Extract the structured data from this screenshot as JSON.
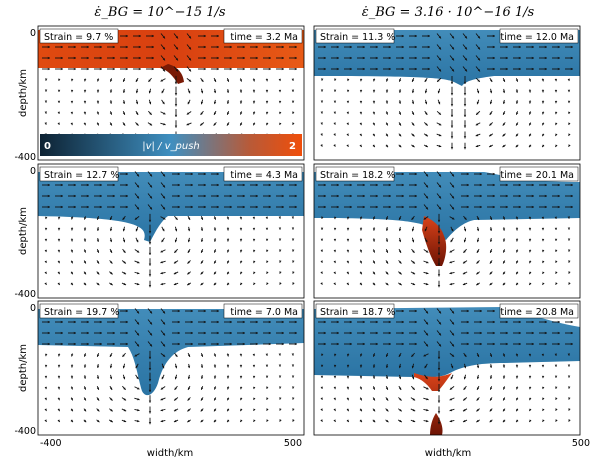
{
  "column_titles": [
    "ε̇_BG = 10^−15 1/s",
    "ε̇_BG = 3.16 · 10^−16 1/s"
  ],
  "colors": {
    "blue": "#3f8fc0",
    "blue_dark": "#1f5778",
    "orange": "#e85a16",
    "orange_dark": "#7a1a05",
    "arrow": "#111111",
    "colorbar_low": "#0d2233",
    "colorbar_mid": "#3f8fc0",
    "colorbar_high": "#f04e0a"
  },
  "chart_data": [
    {
      "type": "field",
      "row": 0,
      "col": 0,
      "strain_label": "Strain = 9.7 %",
      "time_label": "time = 3.2 Ma",
      "strain_percent": 9.7,
      "time_ma": 3.2,
      "colormap": "orange"
    },
    {
      "type": "field",
      "row": 0,
      "col": 1,
      "strain_label": "Strain = 11.3 %",
      "time_label": "time = 12.0 Ma",
      "strain_percent": 11.3,
      "time_ma": 12.0,
      "colormap": "blue"
    },
    {
      "type": "field",
      "row": 1,
      "col": 0,
      "strain_label": "Strain = 12.7 %",
      "time_label": "time = 4.3 Ma",
      "strain_percent": 12.7,
      "time_ma": 4.3,
      "colormap": "blue"
    },
    {
      "type": "field",
      "row": 1,
      "col": 1,
      "strain_label": "Strain = 18.2 %",
      "time_label": "time = 20.1 Ma",
      "strain_percent": 18.2,
      "time_ma": 20.1,
      "colormap": "blue"
    },
    {
      "type": "field",
      "row": 2,
      "col": 0,
      "strain_label": "Strain = 19.7 %",
      "time_label": "time = 7.0 Ma",
      "strain_percent": 19.7,
      "time_ma": 7.0,
      "colormap": "blue"
    },
    {
      "type": "field",
      "row": 2,
      "col": 1,
      "strain_label": "Strain = 18.7 %",
      "time_label": "time = 20.8 Ma",
      "strain_percent": 18.7,
      "time_ma": 20.8,
      "colormap": "blue"
    }
  ],
  "axes": {
    "xlabel": "width/km",
    "ylabel": "depth/km",
    "xticks": [
      "-400",
      "500"
    ],
    "yticks": [
      "0",
      "-400"
    ],
    "xlim": [
      -400,
      500
    ],
    "ylim": [
      -400,
      0
    ]
  },
  "colorbar": {
    "label": "|v| / v_push",
    "min_label": "0",
    "max_label": "2",
    "range": [
      0,
      2
    ]
  }
}
